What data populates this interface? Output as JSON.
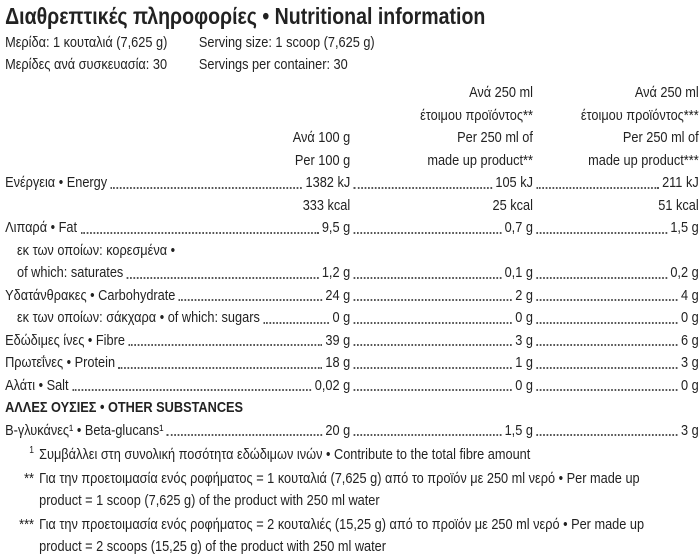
{
  "header": {
    "title": "Διαθρεπτικές πληροφορίες • Nutritional information"
  },
  "serving": [
    [
      "Μερίδα: 1 κουταλιά (7,625 g)",
      "Serving size: 1 scoop (7,625 g)"
    ],
    [
      "Μερίδες ανά συσκευασία: 30",
      "Servings per container: 30"
    ]
  ],
  "columns": [
    [
      "Ανά 100 g",
      "Per 100 g"
    ],
    [
      "Ανά 250 ml",
      "έτοιμου προϊόντος**",
      "Per 250 ml of",
      "made up product**"
    ],
    [
      "Ανά 250 ml",
      "έτοιμου προϊόντος***",
      "Per 250 ml of",
      "made up product***"
    ]
  ],
  "rows": [
    {
      "label": "Ενέργεια • Energy",
      "values": [
        "1382 kJ",
        "105 kJ",
        "211 kJ"
      ]
    },
    {
      "values": [
        "333 kcal",
        "25 kcal",
        "51 kcal"
      ]
    },
    {
      "label": "Λιπαρά • Fat",
      "values": [
        "9,5 g",
        "0,7 g",
        "1,5 g"
      ]
    },
    {
      "label": "εκ των οποίων: κορεσμένα •"
    },
    {
      "label": "of which: saturates",
      "values": [
        "1,2 g",
        "0,1 g",
        "0,2 g"
      ]
    },
    {
      "label": "Υδατάνθρακες • Carbohydrate",
      "values": [
        "24 g",
        "2 g",
        "4 g"
      ]
    },
    {
      "label": "εκ των οποίων: σάκχαρα • of which: sugars",
      "values": [
        "0 g",
        "0 g",
        "0 g"
      ]
    },
    {
      "label": "Εδώδιμες ίνες • Fibre",
      "values": [
        "39 g",
        "3 g",
        "6 g"
      ]
    },
    {
      "label": "Πρωτεΐνες • Protein",
      "values": [
        "18 g",
        "1 g",
        "3 g"
      ]
    },
    {
      "label": "Αλάτι • Salt",
      "values": [
        "0,02 g",
        "0 g",
        "0 g"
      ]
    }
  ],
  "other_substances": {
    "heading": "ΑΛΛΕΣ ΟΥΣΙΕΣ • OTHER SUBSTANCES",
    "rows": [
      {
        "label": "Β-γλυκάνες¹ • Beta-glucans¹",
        "values": [
          "20 g",
          "1,5 g",
          "3 g"
        ]
      }
    ]
  },
  "footnotes": [
    {
      "marker": "1",
      "text": "Συμβάλλει στη συνολική ποσότητα εδώδιμων ινών • Contribute to the total fibre amount"
    },
    {
      "marker": "**",
      "text": "Για την προετοιμασία ενός ροφήματος = 1 κουταλιά (7,625 g) από το προϊόν με 250 ml νερό • Per made up product = 1 scoop (7,625 g) of the product with 250 ml water"
    },
    {
      "marker": "***",
      "text": "Για την προετοιμασία ενός ροφήματος = 2 κουταλιές (15,25 g) από το προϊόν με 250 ml νερό • Per made up product = 2 scoops (15,25 g) of the product with 250 ml water"
    }
  ]
}
